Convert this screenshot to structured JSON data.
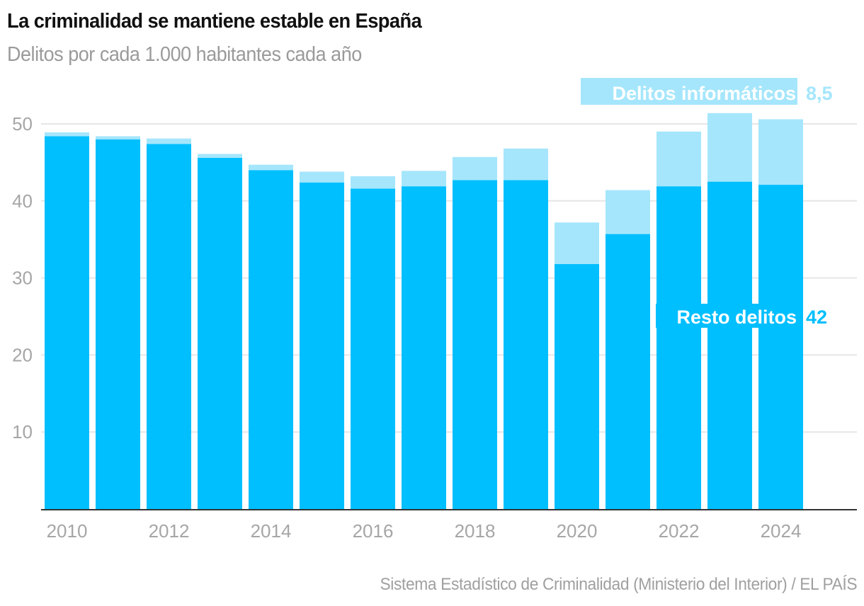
{
  "header": {
    "title": "La criminalidad se mantiene estable en España",
    "subtitle": "Delitos por cada 1.000 habitantes cada año"
  },
  "footer": {
    "source": "Sistema Estadístico de Criminalidad (Ministerio del Interior) / EL PAÍS"
  },
  "colors": {
    "resto": "#00BFFF",
    "informaticos": "#A5E6FC",
    "grid": "#e6e6e6",
    "axis": "#333333"
  },
  "chart_data": {
    "type": "bar",
    "stacked": true,
    "title": "La criminalidad se mantiene estable en España",
    "subtitle": "Delitos por cada 1.000 habitantes cada año",
    "xlabel": "",
    "ylabel": "",
    "ylim": [
      0,
      52
    ],
    "yticks": [
      10,
      20,
      30,
      40,
      50
    ],
    "xtick_labels": [
      "2010",
      "2012",
      "2014",
      "2016",
      "2018",
      "2020",
      "2022",
      "2024"
    ],
    "grid": true,
    "categories": [
      "2010",
      "2011",
      "2012",
      "2013",
      "2014",
      "2015",
      "2016",
      "2017",
      "2018",
      "2019",
      "2020",
      "2021",
      "2022",
      "2023",
      "2024"
    ],
    "series": [
      {
        "name": "Resto delitos",
        "label_value": "42",
        "values": [
          48.4,
          48.0,
          47.4,
          45.6,
          44.0,
          42.4,
          41.6,
          41.9,
          42.7,
          42.7,
          31.8,
          35.7,
          41.9,
          42.5,
          42.1
        ]
      },
      {
        "name": "Delitos informáticos",
        "label_value": "8,5",
        "values": [
          0.5,
          0.4,
          0.7,
          0.5,
          0.7,
          1.4,
          1.6,
          2.0,
          3.0,
          4.1,
          5.4,
          5.7,
          7.1,
          8.9,
          8.5
        ]
      }
    ]
  }
}
